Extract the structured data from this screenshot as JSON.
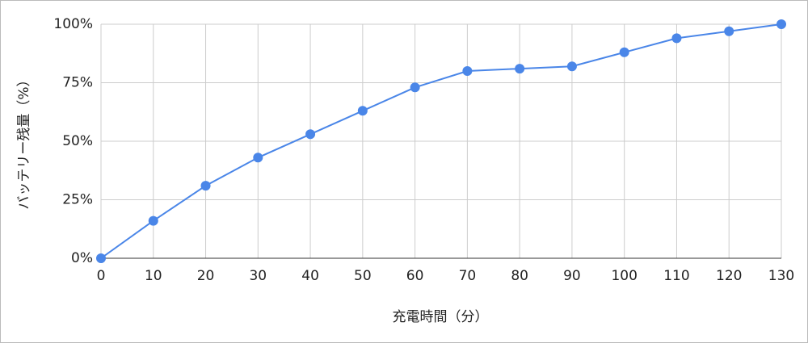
{
  "chart_data": {
    "type": "line",
    "x_label": "充電時間（分）",
    "y_label": "バッテリー残量（%）",
    "x": [
      0,
      10,
      20,
      30,
      40,
      50,
      60,
      70,
      80,
      90,
      100,
      110,
      120,
      130
    ],
    "values": [
      0,
      16,
      31,
      43,
      53,
      63,
      73,
      80,
      81,
      82,
      88,
      94,
      97,
      100
    ],
    "color": "#4a86e8",
    "xlim": [
      0,
      130
    ],
    "xticks": [
      0,
      10,
      20,
      30,
      40,
      50,
      60,
      70,
      80,
      90,
      100,
      110,
      120,
      130
    ],
    "ylim": [
      0,
      100
    ],
    "yticks": [
      {
        "value": 0,
        "label": "0%"
      },
      {
        "value": 25,
        "label": "25%"
      },
      {
        "value": 50,
        "label": "50%"
      },
      {
        "value": 75,
        "label": "75%"
      },
      {
        "value": 100,
        "label": "100%"
      }
    ],
    "grid": true
  }
}
